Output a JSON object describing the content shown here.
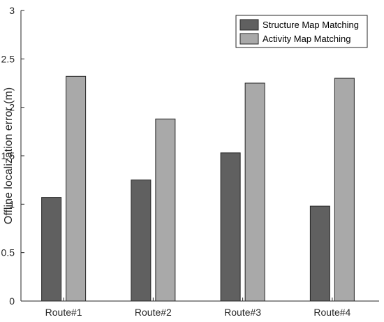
{
  "chart_data": {
    "type": "bar",
    "categories": [
      "Route#1",
      "Route#2",
      "Route#3",
      "Route#4"
    ],
    "series": [
      {
        "name": "Structure Map Matching",
        "values": [
          1.07,
          1.25,
          1.53,
          0.98
        ],
        "color": "#606060"
      },
      {
        "name": "Activity Map Matching",
        "values": [
          2.32,
          1.88,
          2.25,
          2.3
        ],
        "color": "#a9a9a9"
      }
    ],
    "title": "",
    "xlabel": "",
    "ylabel": "Offline localization error (m)",
    "ylim": [
      0,
      3
    ],
    "yticks": [
      "0",
      "0.5",
      "1",
      "1.5",
      "2",
      "2.5",
      "3"
    ],
    "yticks_values": [
      0,
      0.5,
      1,
      1.5,
      2,
      2.5,
      3
    ],
    "grid": false,
    "legend_position": "top-right"
  }
}
